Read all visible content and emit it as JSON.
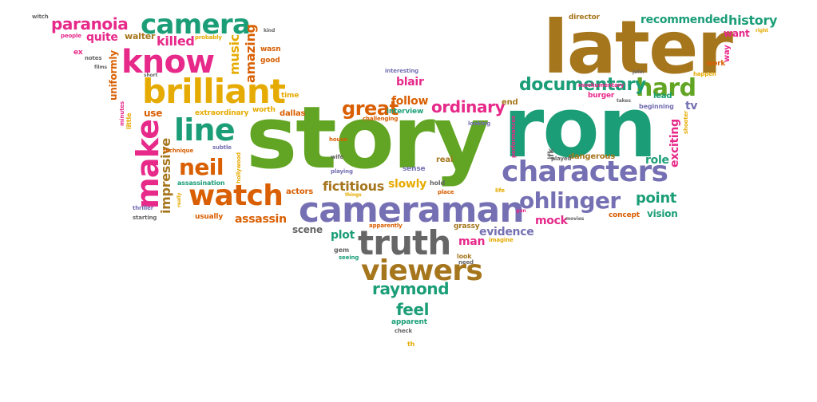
{
  "palette": {
    "green": "#62a423",
    "teal": "#1b9e77",
    "orange": "#d95f02",
    "purple": "#7570b3",
    "pink": "#e7298a",
    "gold": "#e6ab02",
    "brown": "#a6761d",
    "gray": "#666666"
  },
  "words": [
    {
      "text": "story",
      "color": "green"
    },
    {
      "text": "ron",
      "color": "teal"
    },
    {
      "text": "later",
      "color": "brown"
    },
    {
      "text": "cameraman",
      "color": "purple"
    },
    {
      "text": "brilliant",
      "color": "gold"
    },
    {
      "text": "characters",
      "color": "purple"
    },
    {
      "text": "know",
      "color": "pink"
    },
    {
      "text": "camera",
      "color": "teal"
    },
    {
      "text": "truth",
      "color": "gray"
    },
    {
      "text": "watch",
      "color": "orange"
    },
    {
      "text": "viewers",
      "color": "brown"
    },
    {
      "text": "line",
      "color": "teal"
    },
    {
      "text": "make",
      "color": "pink"
    },
    {
      "text": "paranoia",
      "color": "pink"
    },
    {
      "text": "hard",
      "color": "green"
    },
    {
      "text": "documentary",
      "color": "teal"
    },
    {
      "text": "ohlinger",
      "color": "purple"
    },
    {
      "text": "neil",
      "color": "orange"
    },
    {
      "text": "great",
      "color": "orange"
    },
    {
      "text": "raymond",
      "color": "teal"
    },
    {
      "text": "ordinary",
      "color": "pink"
    },
    {
      "text": "feel",
      "color": "teal"
    },
    {
      "text": "history",
      "color": "teal"
    },
    {
      "text": "recommended",
      "color": "teal"
    },
    {
      "text": "killed",
      "color": "pink"
    },
    {
      "text": "quite",
      "color": "pink"
    },
    {
      "text": "amazing",
      "color": "orange"
    },
    {
      "text": "music",
      "color": "gold"
    },
    {
      "text": "impressive",
      "color": "brown"
    },
    {
      "text": "assassin",
      "color": "orange"
    },
    {
      "text": "fictitious",
      "color": "brown"
    },
    {
      "text": "slowly",
      "color": "gold"
    },
    {
      "text": "point",
      "color": "teal"
    },
    {
      "text": "role",
      "color": "teal"
    },
    {
      "text": "exciting",
      "color": "pink"
    },
    {
      "text": "evidence",
      "color": "purple"
    },
    {
      "text": "plot",
      "color": "teal"
    },
    {
      "text": "man",
      "color": "pink"
    },
    {
      "text": "blair",
      "color": "pink"
    },
    {
      "text": "follow",
      "color": "orange"
    },
    {
      "text": "mock",
      "color": "pink"
    },
    {
      "text": "vision",
      "color": "teal"
    },
    {
      "text": "want",
      "color": "pink"
    },
    {
      "text": "uniformly",
      "color": "orange"
    },
    {
      "text": "use",
      "color": "orange"
    },
    {
      "text": "walter",
      "color": "brown"
    },
    {
      "text": "scene",
      "color": "gray"
    },
    {
      "text": "actors",
      "color": "orange"
    },
    {
      "text": "dallas",
      "color": "orange"
    },
    {
      "text": "usually",
      "color": "orange"
    },
    {
      "text": "worth",
      "color": "gold"
    },
    {
      "text": "extraordinary",
      "color": "gold"
    },
    {
      "text": "assassination",
      "color": "teal"
    },
    {
      "text": "tv",
      "color": "purple"
    },
    {
      "text": "end",
      "color": "brown"
    },
    {
      "text": "director",
      "color": "brown"
    },
    {
      "text": "concept",
      "color": "orange"
    },
    {
      "text": "dangerous",
      "color": "brown"
    },
    {
      "text": "gem",
      "color": "gray"
    },
    {
      "text": "grassy",
      "color": "brown"
    },
    {
      "text": "evidence",
      "color": "purple"
    },
    {
      "text": "jfk",
      "color": "gray"
    },
    {
      "text": "apparent",
      "color": "teal"
    },
    {
      "text": "check",
      "color": "gray"
    },
    {
      "text": "th",
      "color": "gold"
    },
    {
      "text": "interview",
      "color": "teal"
    },
    {
      "text": "interesting",
      "color": "purple"
    },
    {
      "text": "challenging",
      "color": "orange"
    },
    {
      "text": "time",
      "color": "gold"
    },
    {
      "text": "good",
      "color": "orange"
    },
    {
      "text": "wasn",
      "color": "orange"
    },
    {
      "text": "kind",
      "color": "gray"
    },
    {
      "text": "probably",
      "color": "gold"
    },
    {
      "text": "people",
      "color": "pink"
    },
    {
      "text": "witch",
      "color": "gray"
    },
    {
      "text": "ex",
      "color": "pink"
    },
    {
      "text": "notes",
      "color": "gray"
    },
    {
      "text": "films",
      "color": "gray"
    },
    {
      "text": "short",
      "color": "gray"
    },
    {
      "text": "little",
      "color": "gold"
    },
    {
      "text": "minutes",
      "color": "pink"
    },
    {
      "text": "subtle",
      "color": "purple"
    },
    {
      "text": "technique",
      "color": "orange"
    },
    {
      "text": "hollywood",
      "color": "gold"
    },
    {
      "text": "really",
      "color": "gold"
    },
    {
      "text": "thriller",
      "color": "purple"
    },
    {
      "text": "starting",
      "color": "gray"
    },
    {
      "text": "house",
      "color": "orange"
    },
    {
      "text": "wife",
      "color": "gray"
    },
    {
      "text": "playing",
      "color": "purple"
    },
    {
      "text": "things",
      "color": "gold"
    },
    {
      "text": "sense",
      "color": "purple"
    },
    {
      "text": "real",
      "color": "brown"
    },
    {
      "text": "hold",
      "color": "gray"
    },
    {
      "text": "place",
      "color": "orange"
    },
    {
      "text": "life",
      "color": "gold"
    },
    {
      "text": "apparently",
      "color": "orange"
    },
    {
      "text": "look",
      "color": "brown"
    },
    {
      "text": "need",
      "color": "gray"
    },
    {
      "text": "imagine",
      "color": "gold"
    },
    {
      "text": "seeing",
      "color": "teal"
    },
    {
      "text": "looking",
      "color": "purple"
    },
    {
      "text": "performances",
      "color": "pink"
    },
    {
      "text": "played",
      "color": "gray"
    },
    {
      "text": "gun",
      "color": "pink"
    },
    {
      "text": "movies",
      "color": "gray"
    },
    {
      "text": "mockumentary",
      "color": "pink"
    },
    {
      "text": "burger",
      "color": "pink"
    },
    {
      "text": "john",
      "color": "gray"
    },
    {
      "text": "lead",
      "color": "teal"
    },
    {
      "text": "takes",
      "color": "gray"
    },
    {
      "text": "beginning",
      "color": "purple"
    },
    {
      "text": "shooter",
      "color": "gold"
    },
    {
      "text": "happen",
      "color": "gold"
    },
    {
      "text": "work",
      "color": "orange"
    },
    {
      "text": "way",
      "color": "pink"
    },
    {
      "text": "right",
      "color": "gold"
    }
  ]
}
